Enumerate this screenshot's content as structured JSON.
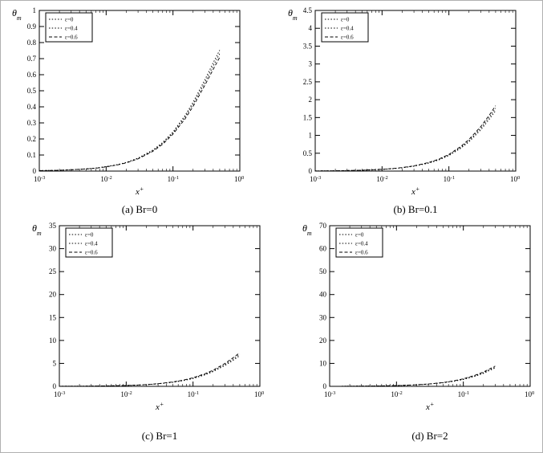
{
  "figure": {
    "background": "#ffffff",
    "line_color": "#000000"
  },
  "chart_data": [
    {
      "id": "a",
      "type": "line",
      "caption": "(a) Br=0",
      "xlabel": "x",
      "xlabel_sup": "+",
      "ylabel": "θ",
      "ylabel_sub": "m",
      "xscale": "log",
      "xlim": [
        0.001,
        1
      ],
      "ylim": [
        0,
        1
      ],
      "yticks": [
        0,
        0.1,
        0.2,
        0.3,
        0.4,
        0.5,
        0.6,
        0.7,
        0.8,
        0.9,
        1
      ],
      "xticks_exp": [
        -3,
        -2,
        -1,
        0
      ],
      "legend_position": "top-left",
      "grid": false,
      "x": [
        0.001,
        0.0015,
        0.002,
        0.003,
        0.005,
        0.007,
        0.01,
        0.015,
        0.02,
        0.03,
        0.05,
        0.07,
        0.1,
        0.15,
        0.2,
        0.3,
        0.4,
        0.5
      ],
      "series": [
        {
          "name": "ε=0",
          "line_style": "dotted",
          "values": [
            0.003,
            0.004,
            0.006,
            0.008,
            0.014,
            0.019,
            0.028,
            0.041,
            0.054,
            0.081,
            0.131,
            0.178,
            0.244,
            0.343,
            0.429,
            0.568,
            0.674,
            0.753
          ]
        },
        {
          "name": "ε=0.4",
          "line_style": "dotted",
          "values": [
            0.003,
            0.004,
            0.005,
            0.008,
            0.013,
            0.019,
            0.027,
            0.04,
            0.053,
            0.078,
            0.127,
            0.173,
            0.237,
            0.333,
            0.416,
            0.551,
            0.654,
            0.731
          ]
        },
        {
          "name": "ε=0.6",
          "line_style": "dashed",
          "values": [
            0.003,
            0.004,
            0.005,
            0.008,
            0.013,
            0.018,
            0.026,
            0.039,
            0.051,
            0.076,
            0.123,
            0.167,
            0.23,
            0.322,
            0.403,
            0.534,
            0.633,
            0.708
          ]
        }
      ]
    },
    {
      "id": "b",
      "type": "line",
      "caption": "(b) Br=0.1",
      "xlabel": "x",
      "xlabel_sup": "+",
      "ylabel": "θ",
      "ylabel_sub": "m",
      "xscale": "log",
      "xlim": [
        0.001,
        1
      ],
      "ylim": [
        0,
        4.5
      ],
      "yticks": [
        0,
        0.5,
        1,
        1.5,
        2,
        2.5,
        3,
        3.5,
        4,
        4.5
      ],
      "xticks_exp": [
        -3,
        -2,
        -1,
        0
      ],
      "legend_position": "top-left",
      "grid": false,
      "x": [
        0.001,
        0.0015,
        0.002,
        0.003,
        0.005,
        0.007,
        0.01,
        0.015,
        0.02,
        0.03,
        0.05,
        0.07,
        0.1,
        0.15,
        0.2,
        0.3,
        0.4,
        0.5
      ],
      "series": [
        {
          "name": "ε=0",
          "line_style": "dotted",
          "values": [
            0.005,
            0.007,
            0.009,
            0.014,
            0.023,
            0.032,
            0.046,
            0.068,
            0.091,
            0.136,
            0.223,
            0.309,
            0.434,
            0.636,
            0.822,
            1.155,
            1.444,
            1.695
          ]
        },
        {
          "name": "ε=0.4",
          "line_style": "dotted",
          "values": [
            0.005,
            0.007,
            0.01,
            0.014,
            0.024,
            0.033,
            0.048,
            0.071,
            0.095,
            0.141,
            0.232,
            0.321,
            0.452,
            0.661,
            0.855,
            1.201,
            1.502,
            1.763
          ]
        },
        {
          "name": "ε=0.6",
          "line_style": "dashed",
          "values": [
            0.005,
            0.007,
            0.01,
            0.015,
            0.025,
            0.035,
            0.049,
            0.074,
            0.098,
            0.147,
            0.241,
            0.334,
            0.469,
            0.687,
            0.888,
            1.247,
            1.559,
            1.831
          ]
        }
      ]
    },
    {
      "id": "c",
      "type": "line",
      "caption": "(c) Br=1",
      "xlabel": "x",
      "xlabel_sup": "+",
      "ylabel": "θ",
      "ylabel_sub": "m",
      "xscale": "log",
      "xlim": [
        0.001,
        1
      ],
      "ylim": [
        0,
        35
      ],
      "yticks": [
        0,
        5,
        10,
        15,
        20,
        25,
        30,
        35
      ],
      "xticks_exp": [
        -3,
        -2,
        -1,
        0
      ],
      "legend_position": "top-left",
      "grid": false,
      "x": [
        0.001,
        0.0015,
        0.002,
        0.003,
        0.005,
        0.007,
        0.01,
        0.015,
        0.02,
        0.03,
        0.05,
        0.07,
        0.1,
        0.15,
        0.2,
        0.3,
        0.4,
        0.5
      ],
      "series": [
        {
          "name": "ε=0",
          "line_style": "dotted",
          "values": [
            0.018,
            0.027,
            0.036,
            0.054,
            0.089,
            0.125,
            0.178,
            0.267,
            0.355,
            0.53,
            0.874,
            1.213,
            1.695,
            2.487,
            3.221,
            4.537,
            5.681,
            6.674
          ]
        },
        {
          "name": "ε=0.4",
          "line_style": "dotted",
          "values": [
            0.019,
            0.028,
            0.037,
            0.056,
            0.094,
            0.131,
            0.187,
            0.28,
            0.372,
            0.556,
            0.918,
            1.273,
            1.78,
            2.612,
            3.382,
            4.764,
            5.965,
            7.008
          ]
        },
        {
          "name": "ε=0.6",
          "line_style": "dashed",
          "values": [
            0.02,
            0.029,
            0.039,
            0.059,
            0.098,
            0.137,
            0.196,
            0.293,
            0.39,
            0.583,
            0.962,
            1.334,
            1.865,
            2.736,
            3.543,
            4.99,
            6.249,
            7.341
          ]
        }
      ]
    },
    {
      "id": "d",
      "type": "line",
      "caption": "(d) Br=2",
      "xlabel": "x",
      "xlabel_sup": "+",
      "ylabel": "θ",
      "ylabel_sub": "m",
      "xscale": "log",
      "xlim": [
        0.001,
        1
      ],
      "ylim": [
        0,
        70
      ],
      "yticks": [
        0,
        10,
        20,
        30,
        40,
        50,
        60,
        70
      ],
      "xticks_exp": [
        -3,
        -2,
        -1,
        0
      ],
      "legend_position": "top-left",
      "grid": false,
      "x": [
        0.001,
        0.0015,
        0.002,
        0.003,
        0.005,
        0.007,
        0.01,
        0.015,
        0.02,
        0.03,
        0.05,
        0.07,
        0.1,
        0.15,
        0.2,
        0.3
      ],
      "series": [
        {
          "name": "ε=0",
          "line_style": "dotted",
          "values": [
            0.031,
            0.047,
            0.063,
            0.094,
            0.157,
            0.22,
            0.314,
            0.47,
            0.626,
            0.934,
            1.543,
            2.14,
            2.992,
            4.389,
            5.683,
            8.006
          ]
        },
        {
          "name": "ε=0.4",
          "line_style": "dotted",
          "values": [
            0.033,
            0.05,
            0.066,
            0.099,
            0.165,
            0.231,
            0.33,
            0.494,
            0.657,
            0.981,
            1.62,
            2.247,
            3.142,
            4.608,
            5.967,
            8.407
          ]
        },
        {
          "name": "ε=0.6",
          "line_style": "dashed",
          "values": [
            0.035,
            0.052,
            0.069,
            0.104,
            0.173,
            0.242,
            0.346,
            0.517,
            0.688,
            1.028,
            1.697,
            2.354,
            3.291,
            4.828,
            6.251,
            8.807
          ]
        }
      ]
    }
  ]
}
